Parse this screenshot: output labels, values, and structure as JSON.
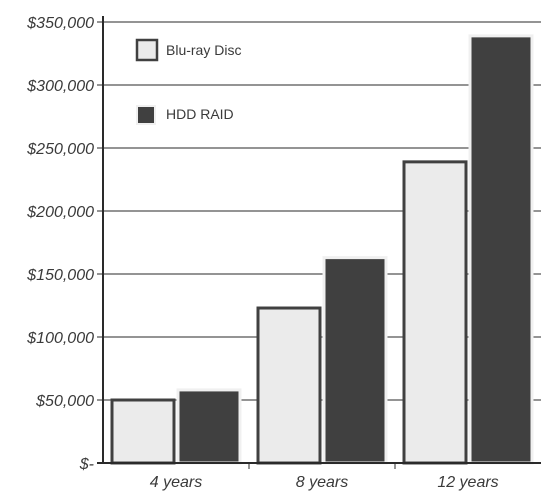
{
  "chart_data": {
    "type": "bar",
    "title": "",
    "xlabel": "",
    "ylabel": "",
    "categories": [
      "4 years",
      "8 years",
      "12 years"
    ],
    "series": [
      {
        "name": "Blu-ray Disc",
        "values": [
          50000,
          123000,
          239000
        ],
        "color": "#ebebeb",
        "stroke": "#404040"
      },
      {
        "name": "HDD RAID",
        "values": [
          58000,
          163000,
          339000
        ],
        "color": "#404040",
        "stroke": "#f0f0f0"
      }
    ],
    "ylim": [
      0,
      350000
    ],
    "yticks": [
      0,
      50000,
      100000,
      150000,
      200000,
      250000,
      300000,
      350000
    ],
    "ytick_labels": [
      "$-",
      "$50,000",
      "$100,000",
      "$150,000",
      "$200,000",
      "$250,000",
      "$300,000",
      "$350,000"
    ],
    "grid": true,
    "legend_position": "top-left"
  }
}
